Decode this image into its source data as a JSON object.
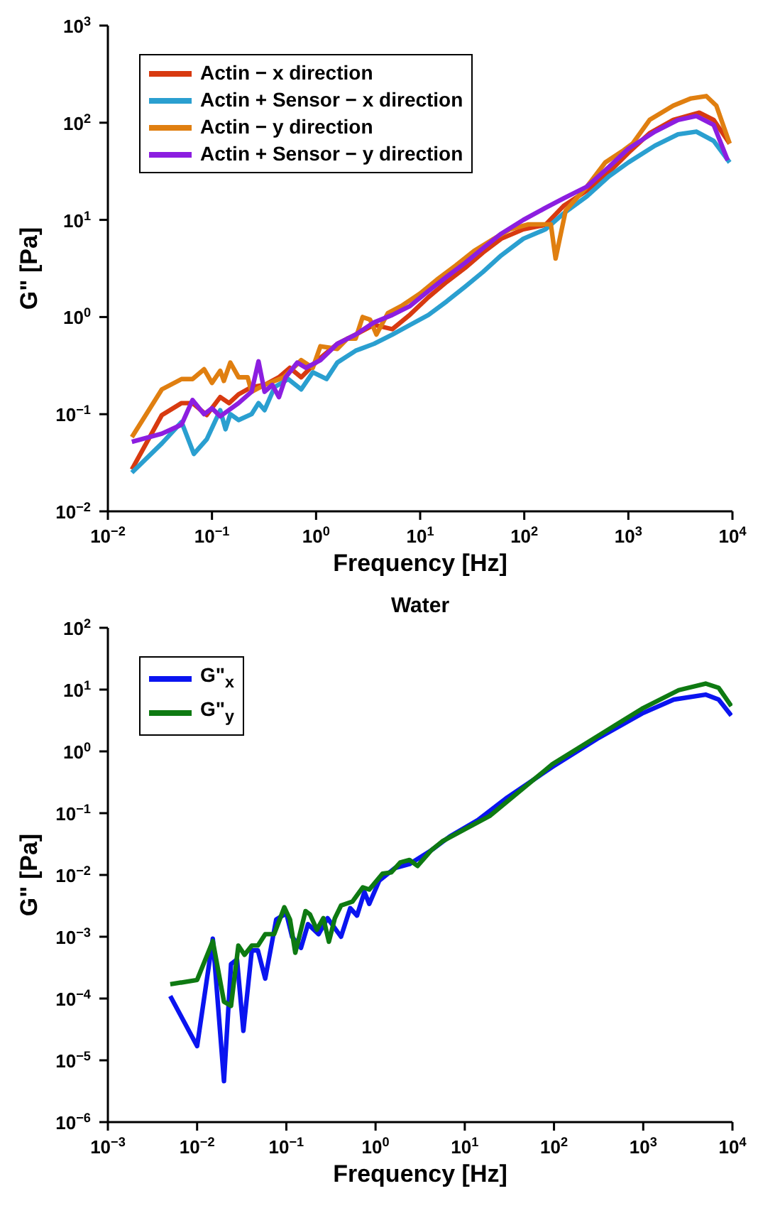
{
  "chart_data": [
    {
      "type": "line",
      "xlabel": "Frequency [Hz]",
      "ylabel": "G\" [Pa]",
      "log": "xy",
      "legend": "top left",
      "grid": false,
      "marker": "none",
      "line_style": "solid",
      "xlim": [
        0.01,
        10000
      ],
      "ylim": [
        0.01,
        1000
      ],
      "xticks": [
        {
          "value": 0.01,
          "label": "10$^{−2}$"
        },
        {
          "value": 0.1,
          "label": "10$^{−1}$"
        },
        {
          "value": 1,
          "label": "10$^{0}$"
        },
        {
          "value": 10,
          "label": "10$^{1}$"
        },
        {
          "value": 100,
          "label": "10$^{2}$"
        },
        {
          "value": 1000,
          "label": "10$^{3}$"
        },
        {
          "value": 10000,
          "label": "10$^{4}$"
        }
      ],
      "yticks": [
        {
          "value": 0.01,
          "label": "10$^{−2}$"
        },
        {
          "value": 0.1,
          "label": "10$^{−1}$"
        },
        {
          "value": 1,
          "label": "10$^{0}$"
        },
        {
          "value": 10,
          "label": "10$^{1}$"
        },
        {
          "value": 100,
          "label": "10$^{2}$"
        },
        {
          "value": 1000,
          "label": "10$^{3}$"
        }
      ],
      "series": [
        {
          "name": "Actin − x direction",
          "color": "#d83a10",
          "x": [
            0.017,
            0.033,
            0.051,
            0.065,
            0.089,
            0.12,
            0.146,
            0.18,
            0.24,
            0.32,
            0.44,
            0.56,
            0.72,
            1.1,
            1.6,
            2.4,
            3.6,
            5.4,
            8,
            12,
            18,
            27,
            40,
            60,
            98,
            160,
            240,
            400,
            650,
            1000,
            1600,
            2700,
            4800,
            6600,
            9400
          ],
          "values": [
            0.027,
            0.098,
            0.13,
            0.13,
            0.098,
            0.15,
            0.13,
            0.16,
            0.19,
            0.2,
            0.24,
            0.3,
            0.24,
            0.38,
            0.53,
            0.66,
            0.83,
            0.75,
            1.06,
            1.6,
            2.3,
            3.2,
            4.6,
            6.4,
            8,
            8.9,
            14,
            20,
            31,
            49,
            78,
            107,
            127,
            107,
            61
          ]
        },
        {
          "name": "Actin + Sensor  − x direction",
          "color": "#2a9fd0",
          "x": [
            0.017,
            0.033,
            0.051,
            0.067,
            0.089,
            0.12,
            0.135,
            0.15,
            0.18,
            0.24,
            0.28,
            0.32,
            0.4,
            0.54,
            0.72,
            0.93,
            1.26,
            1.6,
            2.4,
            3.6,
            5.4,
            8,
            12,
            18,
            27,
            40,
            60,
            98,
            160,
            240,
            400,
            650,
            1000,
            1800,
            3000,
            4500,
            6600,
            9400
          ],
          "values": [
            0.025,
            0.05,
            0.083,
            0.039,
            0.055,
            0.11,
            0.07,
            0.1,
            0.087,
            0.1,
            0.13,
            0.11,
            0.19,
            0.23,
            0.18,
            0.27,
            0.23,
            0.34,
            0.45,
            0.53,
            0.66,
            0.83,
            1.05,
            1.45,
            2.05,
            2.9,
            4.3,
            6.4,
            8,
            11.7,
            17.5,
            28,
            39,
            58,
            76,
            81,
            65,
            39
          ]
        },
        {
          "name": "Actin − y direction",
          "color": "#e07f10",
          "x": [
            0.017,
            0.033,
            0.051,
            0.065,
            0.084,
            0.1,
            0.12,
            0.13,
            0.15,
            0.18,
            0.22,
            0.24,
            0.32,
            0.49,
            0.72,
            0.93,
            1.1,
            1.6,
            2,
            2.4,
            2.8,
            3.3,
            3.8,
            4.9,
            6.6,
            10,
            15,
            22,
            33,
            50,
            73,
            110,
            180,
            200,
            250,
            400,
            600,
            900,
            1100,
            1600,
            2700,
            4000,
            5600,
            7000,
            9400
          ],
          "values": [
            0.058,
            0.18,
            0.23,
            0.23,
            0.29,
            0.21,
            0.28,
            0.22,
            0.34,
            0.24,
            0.24,
            0.17,
            0.2,
            0.24,
            0.36,
            0.3,
            0.5,
            0.47,
            0.6,
            0.6,
            1,
            0.94,
            0.66,
            1.1,
            1.3,
            1.75,
            2.5,
            3.4,
            4.8,
            6.3,
            8,
            9,
            9,
            4,
            12.5,
            22,
            39,
            52,
            61,
            107,
            150,
            178,
            188,
            150,
            61
          ]
        },
        {
          "name": "Actin + Sensor − y direction",
          "color": "#8c1ee0",
          "x": [
            0.017,
            0.033,
            0.051,
            0.065,
            0.084,
            0.1,
            0.12,
            0.18,
            0.24,
            0.28,
            0.32,
            0.38,
            0.44,
            0.51,
            0.66,
            0.8,
            1.1,
            1.6,
            2.4,
            3.6,
            5.4,
            8,
            12,
            18,
            27,
            40,
            60,
            98,
            160,
            240,
            400,
            650,
            1000,
            1800,
            3000,
            4500,
            6600,
            9000
          ],
          "values": [
            0.052,
            0.063,
            0.078,
            0.14,
            0.1,
            0.115,
            0.095,
            0.13,
            0.17,
            0.35,
            0.17,
            0.2,
            0.15,
            0.24,
            0.34,
            0.3,
            0.36,
            0.53,
            0.66,
            0.88,
            1.05,
            1.3,
            1.85,
            2.6,
            3.6,
            5.1,
            7.2,
            10,
            13.3,
            16.7,
            22,
            35,
            54,
            81,
            107,
            117,
            95,
            41
          ]
        }
      ]
    },
    {
      "type": "line",
      "title": "Water",
      "xlabel": "Frequency [Hz]",
      "ylabel": "G\" [Pa]",
      "log": "xy",
      "legend": "top left",
      "grid": false,
      "marker": "none",
      "line_style": "solid",
      "xlim": [
        0.001,
        10000
      ],
      "ylim": [
        1e-06,
        100
      ],
      "xticks": [
        {
          "value": 0.001,
          "label": "10$^{−3}$"
        },
        {
          "value": 0.01,
          "label": "10$^{−2}$"
        },
        {
          "value": 0.1,
          "label": "10$^{−1}$"
        },
        {
          "value": 1,
          "label": "10$^{0}$"
        },
        {
          "value": 10,
          "label": "10$^{1}$"
        },
        {
          "value": 100,
          "label": "10$^{2}$"
        },
        {
          "value": 1000,
          "label": "10$^{3}$"
        },
        {
          "value": 10000,
          "label": "10$^{4}$"
        }
      ],
      "yticks": [
        {
          "value": 1e-06,
          "label": "10$^{−6}$"
        },
        {
          "value": 1e-05,
          "label": "10$^{−5}$"
        },
        {
          "value": 0.0001,
          "label": "10$^{−4}$"
        },
        {
          "value": 0.001,
          "label": "10$^{−3}$"
        },
        {
          "value": 0.01,
          "label": "10$^{−2}$"
        },
        {
          "value": 0.1,
          "label": "10$^{−1}$"
        },
        {
          "value": 1,
          "label": "10$^{0}$"
        },
        {
          "value": 10,
          "label": "10$^{1}$"
        },
        {
          "value": 100,
          "label": "10$^{2}$"
        }
      ],
      "series": [
        {
          "name": "G\"$_{x}$",
          "color": "#0a14f0",
          "x": [
            0.005,
            0.01,
            0.015,
            0.02,
            0.024,
            0.028,
            0.033,
            0.041,
            0.048,
            0.058,
            0.077,
            0.1,
            0.116,
            0.146,
            0.175,
            0.23,
            0.29,
            0.41,
            0.52,
            0.62,
            0.75,
            0.85,
            1.1,
            1.66,
            2.4,
            4.2,
            6.8,
            14,
            30,
            96,
            305,
            970,
            2200,
            5000,
            7000,
            9700
          ],
          "values": [
            0.00011,
            1.7e-05,
            0.00093,
            4.6e-06,
            0.00036,
            0.00043,
            3e-05,
            0.0006,
            0.0006,
            0.00021,
            0.0019,
            0.0024,
            0.001,
            0.00066,
            0.0016,
            0.0011,
            0.002,
            0.001,
            0.0029,
            0.0022,
            0.0053,
            0.0034,
            0.0081,
            0.013,
            0.015,
            0.025,
            0.042,
            0.077,
            0.18,
            0.56,
            1.6,
            4.1,
            6.9,
            8.3,
            6.9,
            3.8
          ]
        },
        {
          "name": "G\"$_{y}$",
          "color": "#0e7a12",
          "x": [
            0.005,
            0.01,
            0.015,
            0.02,
            0.024,
            0.029,
            0.034,
            0.041,
            0.048,
            0.058,
            0.073,
            0.095,
            0.11,
            0.126,
            0.164,
            0.184,
            0.22,
            0.26,
            0.3,
            0.35,
            0.41,
            0.55,
            0.72,
            0.85,
            1.2,
            1.5,
            1.9,
            2.4,
            2.95,
            4.2,
            5.6,
            10,
            19,
            34,
            96,
            305,
            970,
            2500,
            5000,
            7000,
            9700
          ],
          "values": [
            0.00017,
            0.0002,
            0.00085,
            8.9e-05,
            7.6e-05,
            0.00072,
            0.00051,
            0.00072,
            0.00072,
            0.0011,
            0.0011,
            0.003,
            0.0019,
            0.00055,
            0.0026,
            0.0023,
            0.0013,
            0.002,
            0.00083,
            0.002,
            0.0032,
            0.0037,
            0.0063,
            0.0058,
            0.0105,
            0.011,
            0.016,
            0.0175,
            0.014,
            0.025,
            0.035,
            0.055,
            0.09,
            0.18,
            0.62,
            1.75,
            4.9,
            9.8,
            12.5,
            10.7,
            5.4
          ]
        }
      ]
    }
  ]
}
